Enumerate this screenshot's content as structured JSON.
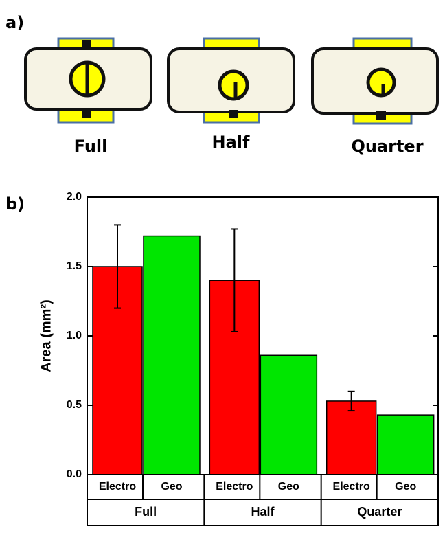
{
  "panel_a": {
    "label": "a)",
    "labels": [
      "Full",
      "Half",
      "Quarter"
    ]
  },
  "chart_data": {
    "type": "bar",
    "panel_label": "b)",
    "y_label": "Area (mm²)",
    "categories": [
      "Full",
      "Half",
      "Quarter"
    ],
    "series": [
      {
        "name": "Electro",
        "color": "#ff0000",
        "values": [
          1.5,
          1.4,
          0.53
        ],
        "errors": [
          0.3,
          0.37,
          0.07
        ]
      },
      {
        "name": "Geo",
        "color": "#00e600",
        "values": [
          1.72,
          0.86,
          0.43
        ]
      }
    ],
    "ylim": [
      0,
      2
    ],
    "yticks": [
      {
        "value": 0,
        "label": "0.0"
      },
      {
        "value": 0.5,
        "label": "0.5"
      },
      {
        "value": 1,
        "label": "1.0"
      },
      {
        "value": 1.5,
        "label": "1.5"
      },
      {
        "value": 2,
        "label": "2.0"
      }
    ]
  }
}
